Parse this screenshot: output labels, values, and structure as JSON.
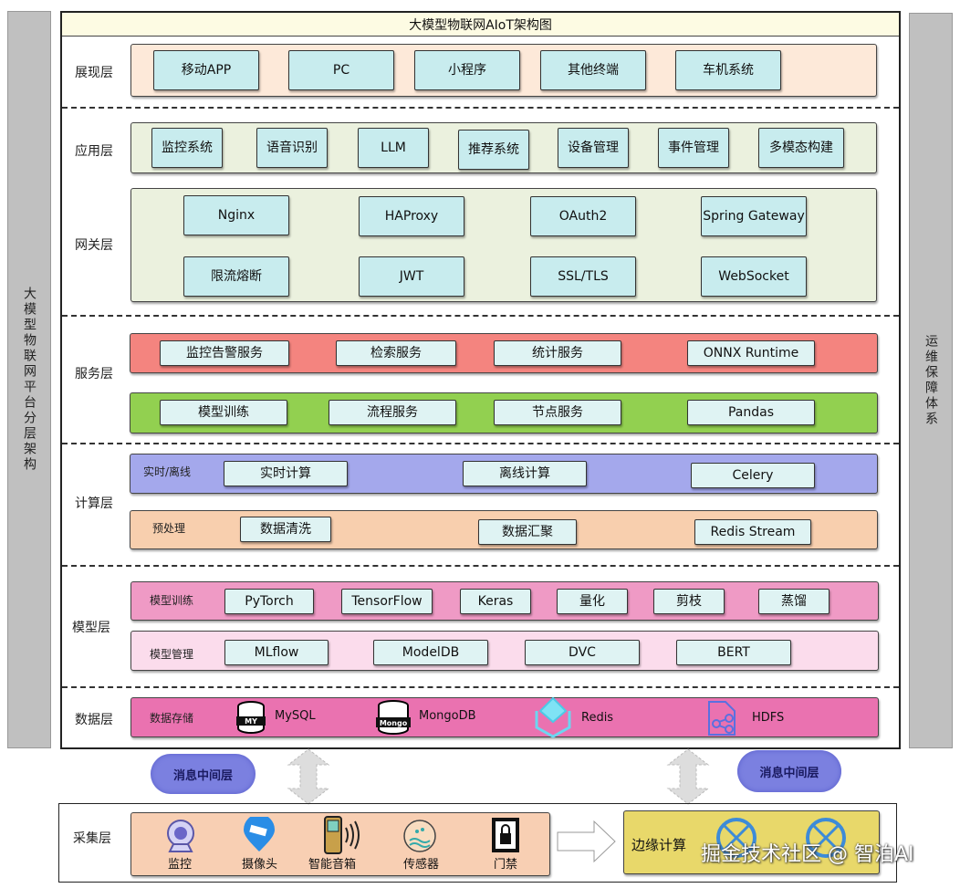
{
  "title": "大模型物联网AIoT架构图",
  "left_bar": "大模型物联网平台分层架构",
  "right_bar": "运维保障体系",
  "layers": {
    "presentation": {
      "label": "展现层",
      "items": [
        "移动APP",
        "PC",
        "小程序",
        "其他终端",
        "车机系统"
      ]
    },
    "application": {
      "label": "应用层",
      "items": [
        "监控系统",
        "语音识别",
        "LLM",
        "推荐系统",
        "设备管理",
        "事件管理",
        "多模态构建"
      ]
    },
    "gateway": {
      "label": "网关层",
      "items": [
        "Nginx",
        "HAProxy",
        "OAuth2",
        "Spring Gateway",
        "限流熔断",
        "JWT",
        "SSL/TLS",
        "WebSocket"
      ]
    },
    "service": {
      "label": "服务层",
      "row1": [
        "监控告警服务",
        "检索服务",
        "统计服务",
        "ONNX Runtime"
      ],
      "row2": [
        "模型训练",
        "流程服务",
        "节点服务",
        "Pandas"
      ]
    },
    "compute": {
      "label": "计算层",
      "row1_label": "实时/离线",
      "row1": [
        "实时计算",
        "离线计算",
        "Celery"
      ],
      "row2_label": "预处理",
      "row2": [
        "数据清洗",
        "数据汇聚",
        "Redis Stream"
      ]
    },
    "model": {
      "label": "模型层",
      "row1_label": "模型训练",
      "row1": [
        "PyTorch",
        "TensorFlow",
        "Keras",
        "量化",
        "剪枝",
        "蒸馏"
      ],
      "row2_label": "模型管理",
      "row2": [
        "MLflow",
        "ModelDB",
        "DVC",
        "BERT"
      ]
    },
    "data": {
      "label": "数据层",
      "sub_label": "数据存储",
      "items": [
        "MySQL",
        "MongoDB",
        "Redis",
        "HDFS"
      ],
      "mysql_badge": "MY",
      "mongo_badge": "Mongo"
    }
  },
  "middleware": [
    "消息中间层",
    "消息中间层"
  ],
  "collection": {
    "label": "采集层",
    "items": [
      "监控",
      "摄像头",
      "智能音箱",
      "传感器",
      "门禁"
    ]
  },
  "edge": {
    "label": "边缘计算"
  },
  "watermark": "掘金技术社区 @ 智泊AI"
}
